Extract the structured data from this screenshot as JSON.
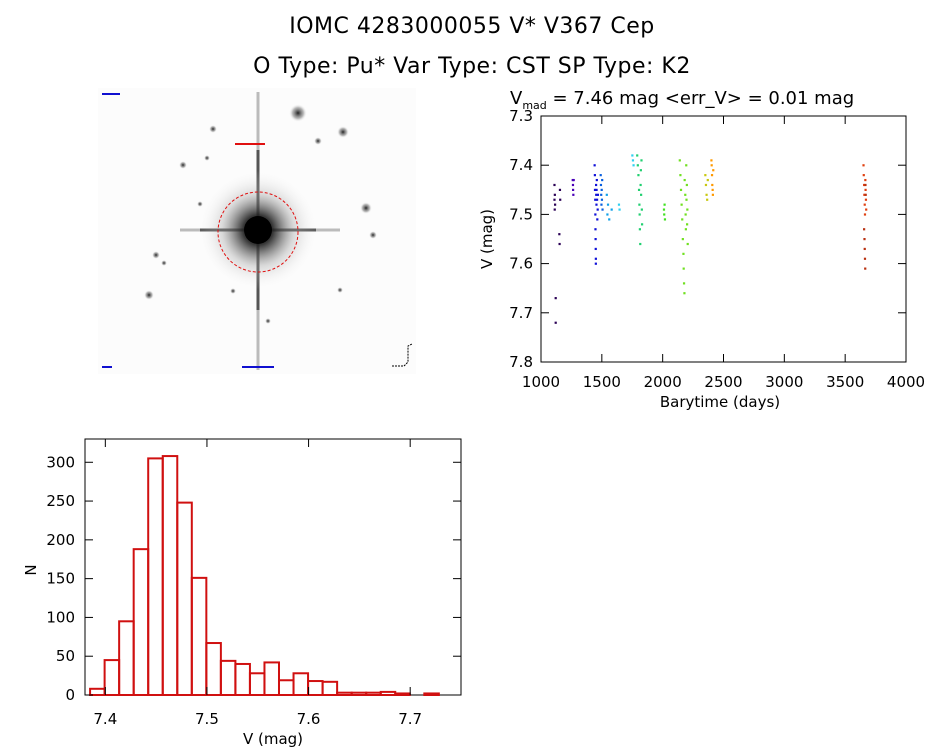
{
  "header": {
    "title_line1": "IOMC 4283000055    V* V367 Cep",
    "title_line2": "O Type: Pu*  Var Type: CST  SP Type: K2"
  },
  "colors": {
    "histogram": "#d01010",
    "aperture": "#e01010",
    "label_blue": "#1010d0"
  },
  "image_panel": {
    "labels": [
      "",
      ""
    ]
  },
  "chart_data": [
    {
      "type": "scatter",
      "id": "lightcurve",
      "title_prefix": "V",
      "title_sub": "mad",
      "title_suffix": " = 7.46 mag <err_V> = 0.01 mag",
      "xlabel": "Barytime (days)",
      "ylabel": "V (mag)",
      "xlim": [
        1000,
        4000
      ],
      "ylim": [
        7.3,
        7.8
      ],
      "y_inverted": true,
      "xticks": [
        1000,
        1500,
        2000,
        2500,
        3000,
        3500,
        4000
      ],
      "yticks": [
        7.3,
        7.4,
        7.5,
        7.6,
        7.7,
        7.8
      ],
      "series": [
        {
          "name": "s1",
          "color": "#2a0055",
          "points": [
            [
              1110,
              7.44
            ],
            [
              1110,
              7.47
            ],
            [
              1112,
              7.49
            ],
            [
              1113,
              7.46
            ],
            [
              1115,
              7.48
            ],
            [
              1120,
              7.67
            ],
            [
              1120,
              7.72
            ],
            [
              1150,
              7.54
            ],
            [
              1152,
              7.56
            ],
            [
              1155,
              7.45
            ],
            [
              1157,
              7.47
            ]
          ]
        },
        {
          "name": "s2",
          "color": "#4a00b8",
          "points": [
            [
              1260,
              7.43
            ],
            [
              1262,
              7.44
            ],
            [
              1263,
              7.45
            ],
            [
              1265,
              7.46
            ],
            [
              1268,
              7.43
            ]
          ]
        },
        {
          "name": "s3",
          "color": "#1010d8",
          "points": [
            [
              1440,
              7.4
            ],
            [
              1442,
              7.42
            ],
            [
              1443,
              7.45
            ],
            [
              1445,
              7.47
            ],
            [
              1446,
              7.5
            ],
            [
              1447,
              7.53
            ],
            [
              1448,
              7.55
            ],
            [
              1449,
              7.57
            ],
            [
              1450,
              7.59
            ],
            [
              1450,
              7.6
            ],
            [
              1452,
              7.44
            ],
            [
              1453,
              7.46
            ],
            [
              1455,
              7.48
            ],
            [
              1456,
              7.45
            ],
            [
              1458,
              7.43
            ],
            [
              1460,
              7.47
            ],
            [
              1462,
              7.51
            ],
            [
              1465,
              7.49
            ],
            [
              1467,
              7.46
            ]
          ]
        },
        {
          "name": "s4",
          "color": "#0a60e0",
          "points": [
            [
              1490,
              7.42
            ],
            [
              1492,
              7.44
            ],
            [
              1494,
              7.46
            ],
            [
              1496,
              7.48
            ],
            [
              1498,
              7.45
            ],
            [
              1500,
              7.47
            ],
            [
              1502,
              7.43
            ],
            [
              1505,
              7.49
            ]
          ]
        },
        {
          "name": "s5",
          "color": "#10a0e8",
          "points": [
            [
              1540,
              7.46
            ],
            [
              1545,
              7.5
            ],
            [
              1550,
              7.48
            ],
            [
              1560,
              7.51
            ],
            [
              1580,
              7.49
            ]
          ]
        },
        {
          "name": "s6",
          "color": "#30d0f0",
          "points": [
            [
              1640,
              7.48
            ],
            [
              1645,
              7.49
            ],
            [
              1750,
              7.38
            ],
            [
              1755,
              7.39
            ],
            [
              1760,
              7.4
            ]
          ]
        },
        {
          "name": "s7",
          "color": "#20d070",
          "points": [
            [
              1790,
              7.38
            ],
            [
              1795,
              7.4
            ],
            [
              1800,
              7.42
            ],
            [
              1805,
              7.45
            ],
            [
              1808,
              7.48
            ],
            [
              1810,
              7.5
            ],
            [
              1812,
              7.53
            ],
            [
              1815,
              7.56
            ],
            [
              1818,
              7.44
            ],
            [
              1820,
              7.41
            ],
            [
              1822,
              7.46
            ],
            [
              1825,
              7.39
            ],
            [
              1828,
              7.49
            ],
            [
              1830,
              7.52
            ]
          ]
        },
        {
          "name": "s8",
          "color": "#40e020",
          "points": [
            [
              2010,
              7.49
            ],
            [
              2012,
              7.5
            ],
            [
              2015,
              7.48
            ],
            [
              2018,
              7.51
            ]
          ]
        },
        {
          "name": "s9",
          "color": "#70e020",
          "points": [
            [
              2140,
              7.39
            ],
            [
              2145,
              7.42
            ],
            [
              2150,
              7.45
            ],
            [
              2155,
              7.48
            ],
            [
              2160,
              7.51
            ],
            [
              2165,
              7.55
            ],
            [
              2170,
              7.58
            ],
            [
              2172,
              7.61
            ],
            [
              2175,
              7.64
            ],
            [
              2178,
              7.66
            ],
            [
              2180,
              7.43
            ],
            [
              2185,
              7.46
            ],
            [
              2188,
              7.5
            ],
            [
              2190,
              7.53
            ],
            [
              2193,
              7.4
            ],
            [
              2195,
              7.47
            ],
            [
              2198,
              7.44
            ],
            [
              2200,
              7.52
            ],
            [
              2202,
              7.49
            ],
            [
              2205,
              7.56
            ]
          ]
        },
        {
          "name": "s10",
          "color": "#c8c810",
          "points": [
            [
              2350,
              7.42
            ],
            [
              2355,
              7.44
            ],
            [
              2360,
              7.46
            ],
            [
              2365,
              7.47
            ],
            [
              2370,
              7.43
            ]
          ]
        },
        {
          "name": "s11",
          "color": "#ff9900",
          "points": [
            [
              2400,
              7.39
            ],
            [
              2402,
              7.4
            ],
            [
              2405,
              7.42
            ],
            [
              2407,
              7.44
            ],
            [
              2410,
              7.45
            ],
            [
              2412,
              7.46
            ],
            [
              2415,
              7.41
            ]
          ]
        },
        {
          "name": "s12",
          "color": "#e04010",
          "points": [
            [
              3650,
              7.4
            ],
            [
              3652,
              7.42
            ],
            [
              3655,
              7.44
            ],
            [
              3657,
              7.46
            ],
            [
              3660,
              7.48
            ],
            [
              3662,
              7.5
            ],
            [
              3665,
              7.43
            ],
            [
              3667,
              7.45
            ],
            [
              3670,
              7.47
            ],
            [
              3672,
              7.49
            ]
          ]
        },
        {
          "name": "s13",
          "color": "#b83010",
          "points": [
            [
              3655,
              7.53
            ],
            [
              3658,
              7.55
            ],
            [
              3660,
              7.57
            ],
            [
              3662,
              7.59
            ],
            [
              3664,
              7.61
            ],
            [
              3666,
              7.44
            ],
            [
              3668,
              7.46
            ]
          ]
        }
      ]
    },
    {
      "type": "bar",
      "id": "histogram",
      "xlabel": "V (mag)",
      "ylabel": "N",
      "xlim": [
        7.38,
        7.75
      ],
      "ylim": [
        0,
        330
      ],
      "xticks": [
        7.4,
        7.5,
        7.6,
        7.7
      ],
      "yticks": [
        0,
        50,
        100,
        150,
        200,
        250,
        300
      ],
      "bin_width": 0.0143,
      "bin_start": 7.385,
      "values": [
        8,
        45,
        95,
        188,
        305,
        308,
        248,
        151,
        67,
        44,
        40,
        28,
        42,
        19,
        28,
        18,
        17,
        3,
        3,
        3,
        4,
        2,
        0,
        2
      ]
    }
  ]
}
